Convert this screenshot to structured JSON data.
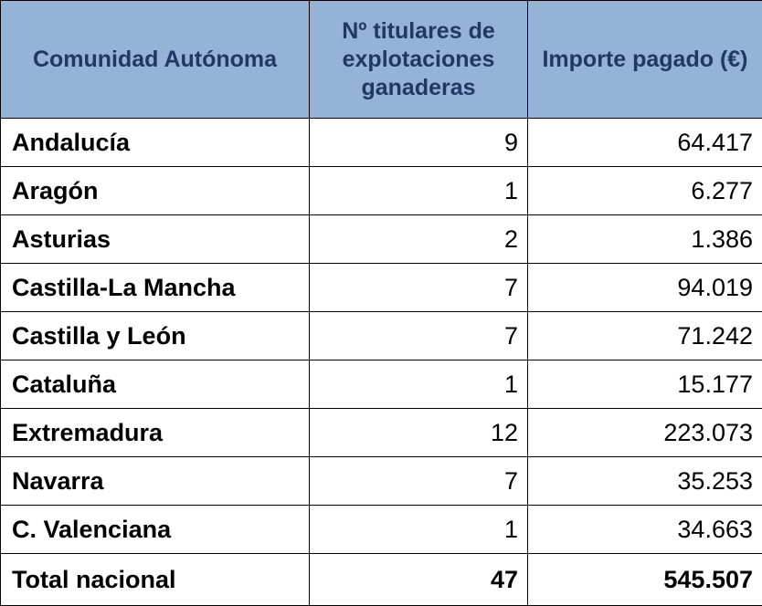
{
  "table": {
    "headers": [
      "Comunidad Autónoma",
      "Nº titulares de explotaciones ganaderas",
      "Importe pagado (€)"
    ],
    "rows": [
      {
        "comunidad": "Andalucía",
        "titulares": "9",
        "importe": "64.417"
      },
      {
        "comunidad": "Aragón",
        "titulares": "1",
        "importe": "6.277"
      },
      {
        "comunidad": "Asturias",
        "titulares": "2",
        "importe": "1.386"
      },
      {
        "comunidad": "Castilla-La Mancha",
        "titulares": "7",
        "importe": "94.019"
      },
      {
        "comunidad": "Castilla y León",
        "titulares": "7",
        "importe": "71.242"
      },
      {
        "comunidad": "Cataluña",
        "titulares": "1",
        "importe": "15.177"
      },
      {
        "comunidad": "Extremadura",
        "titulares": "12",
        "importe": "223.073"
      },
      {
        "comunidad": "Navarra",
        "titulares": "7",
        "importe": "35.253"
      },
      {
        "comunidad": "C. Valenciana",
        "titulares": "1",
        "importe": "34.663"
      }
    ],
    "total": {
      "comunidad": "Total nacional",
      "titulares": "47",
      "importe": "545.507"
    }
  },
  "colors": {
    "header_background": "#95b3d7",
    "header_text": "#1f3864",
    "border": "#000000"
  }
}
